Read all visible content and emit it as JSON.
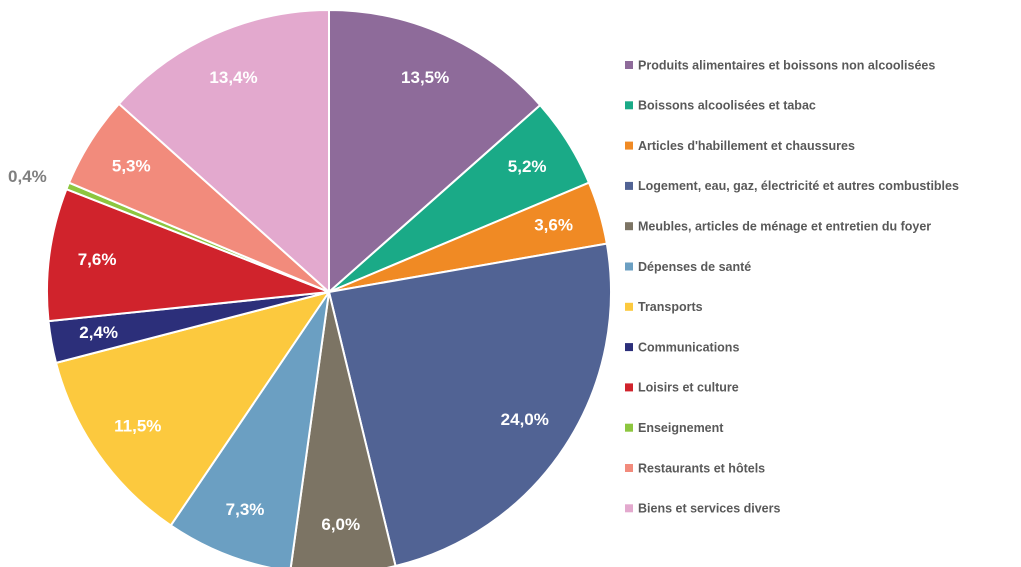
{
  "chart_data": {
    "type": "pie",
    "categories": [
      "Produits alimentaires et boissons non alcoolisées",
      "Boissons alcoolisées et tabac",
      "Articles d'habillement et chaussures",
      "Logement, eau, gaz, électricité et autres combustibles",
      "Meubles, articles de ménage et entretien du foyer",
      "Dépenses de santé",
      "Transports",
      "Communications",
      "Loisirs et culture",
      "Enseignement",
      "Restaurants et hôtels",
      "Biens et services divers"
    ],
    "values": [
      13.5,
      5.2,
      3.6,
      24.0,
      6.0,
      7.3,
      11.5,
      2.4,
      7.6,
      0.4,
      5.3,
      13.4
    ],
    "value_labels": [
      "13,5%",
      "5,2%",
      "3,6%",
      "24,0%",
      "6,0%",
      "7,3%",
      "11,5%",
      "2,4%",
      "7,6%",
      "0,4%",
      "5,3%",
      "13,4%"
    ],
    "colors": [
      "#8e6b9a",
      "#1aaa87",
      "#f08a24",
      "#516394",
      "#7c7464",
      "#6b9fc2",
      "#fcc93e",
      "#2c2f7a",
      "#d0232c",
      "#8dc63f",
      "#f28b7c",
      "#e3a9ce"
    ]
  }
}
